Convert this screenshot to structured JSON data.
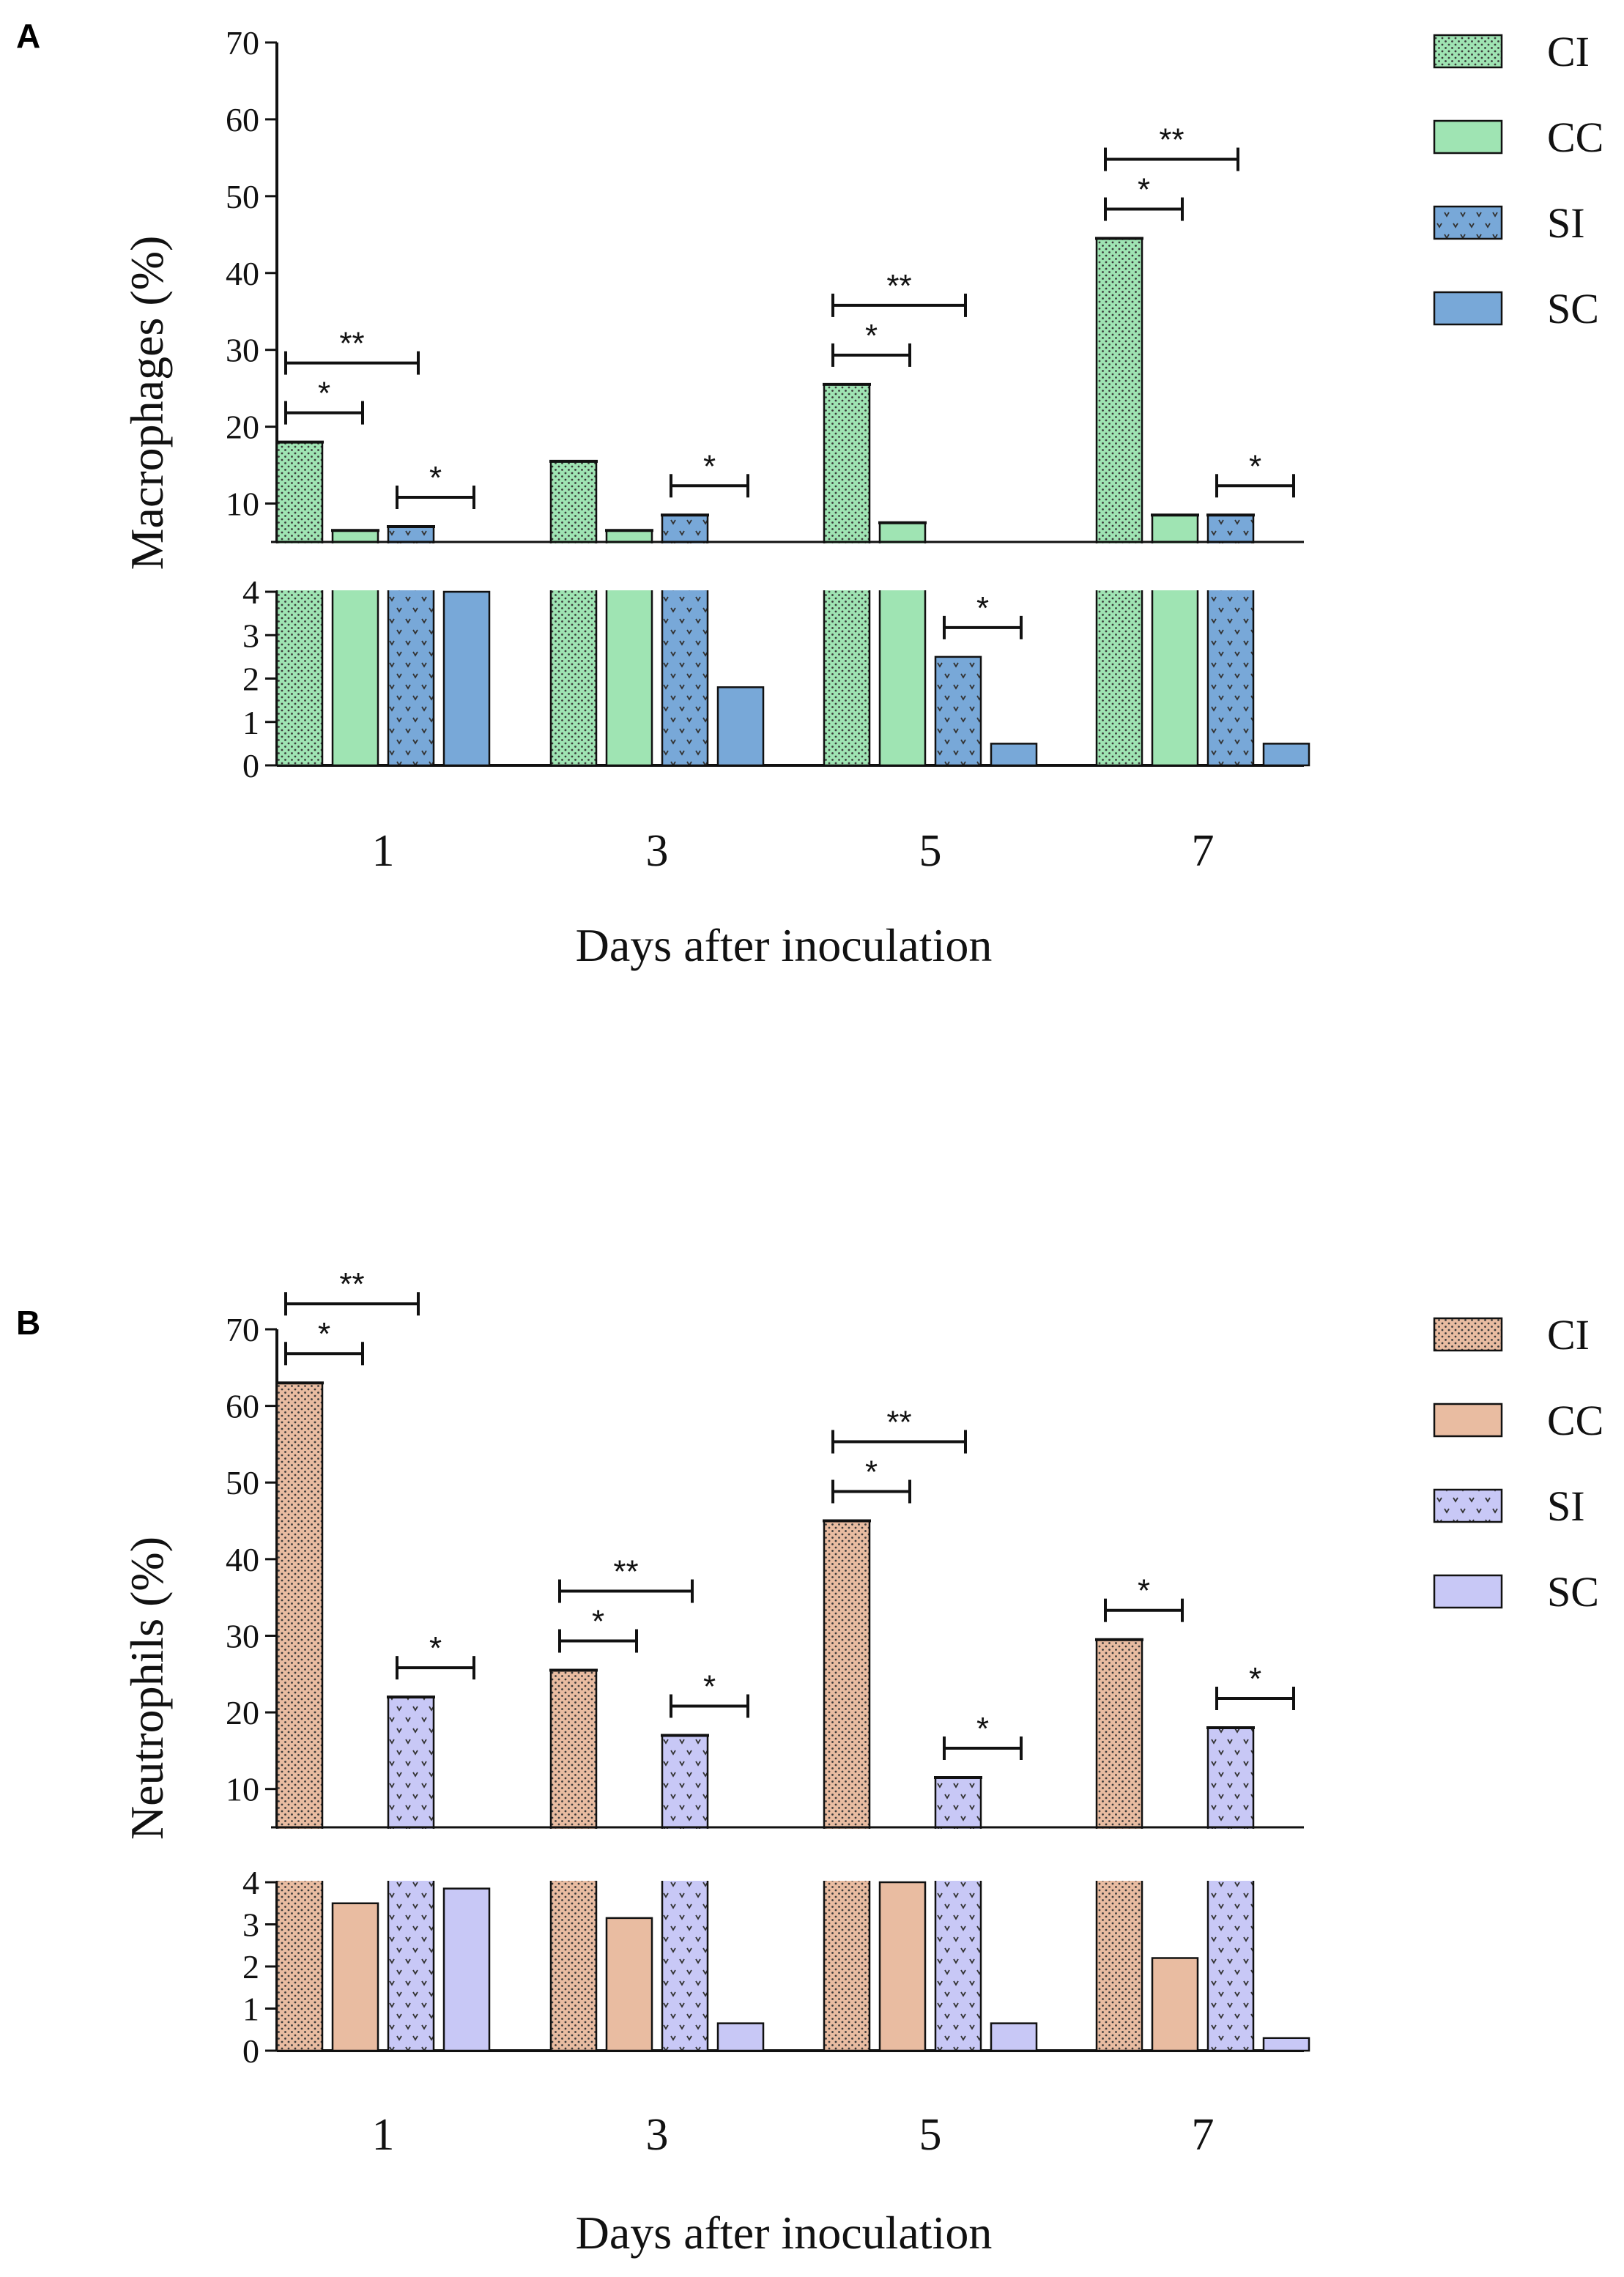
{
  "chart_data": [
    {
      "type": "bar",
      "panel_label": "A",
      "ylabel": "Macrophages (%)",
      "xlabel": "Days after inoculation",
      "categories": [
        "1",
        "3",
        "5",
        "7"
      ],
      "ylim_lower": [
        0,
        4
      ],
      "ylim_upper": [
        5,
        70
      ],
      "yticks_lower": [
        "0",
        "1",
        "2",
        "3",
        "4"
      ],
      "yticks_upper": [
        "10",
        "20",
        "30",
        "40",
        "50",
        "60",
        "70"
      ],
      "legend_position": "top-right",
      "series": [
        {
          "name": "CI",
          "values": [
            18,
            15.5,
            25.5,
            44.5
          ],
          "color": "#9fe4b3",
          "pattern": "dots"
        },
        {
          "name": "CC",
          "values": [
            6.5,
            6.5,
            7.5,
            8.5
          ],
          "color": "#9fe4b3",
          "pattern": "solid"
        },
        {
          "name": "SI",
          "values": [
            7,
            8.5,
            2.5,
            8.5
          ],
          "color": "#78a8d8",
          "pattern": "chevrons"
        },
        {
          "name": "SC",
          "values": [
            4,
            1.8,
            0.5,
            0.5
          ],
          "color": "#78a8d8",
          "pattern": "solid"
        }
      ],
      "annotations": [
        {
          "category": 0,
          "from": 0,
          "to": 1,
          "label": "*"
        },
        {
          "category": 0,
          "from": 0,
          "to": 2,
          "label": "**"
        },
        {
          "category": 0,
          "from": 2,
          "to": 3,
          "label": "*"
        },
        {
          "category": 1,
          "from": 2,
          "to": 3,
          "label": "*"
        },
        {
          "category": 2,
          "from": 0,
          "to": 1,
          "label": "*"
        },
        {
          "category": 2,
          "from": 0,
          "to": 2,
          "label": "**"
        },
        {
          "category": 2,
          "from": 2,
          "to": 3,
          "label": "*"
        },
        {
          "category": 3,
          "from": 0,
          "to": 1,
          "label": "*"
        },
        {
          "category": 3,
          "from": 0,
          "to": 2,
          "label": "**"
        },
        {
          "category": 3,
          "from": 2,
          "to": 3,
          "label": "*"
        }
      ]
    },
    {
      "type": "bar",
      "panel_label": "B",
      "ylabel": "Neutrophils (%)",
      "xlabel": "Days after inoculation",
      "categories": [
        "1",
        "3",
        "5",
        "7"
      ],
      "ylim_lower": [
        0,
        4
      ],
      "ylim_upper": [
        5,
        70
      ],
      "yticks_lower": [
        "0",
        "1",
        "2",
        "3",
        "4"
      ],
      "yticks_upper": [
        "10",
        "20",
        "30",
        "40",
        "50",
        "60",
        "70"
      ],
      "legend_position": "top-right",
      "series": [
        {
          "name": "CI",
          "values": [
            63,
            25.5,
            45,
            29.5
          ],
          "color": "#e9bca1",
          "pattern": "dots"
        },
        {
          "name": "CC",
          "values": [
            3.5,
            3.15,
            4,
            2.2
          ],
          "color": "#e9bca1",
          "pattern": "solid"
        },
        {
          "name": "SI",
          "values": [
            22,
            17,
            11.5,
            18
          ],
          "color": "#c8c8f6",
          "pattern": "chevrons"
        },
        {
          "name": "SC",
          "values": [
            3.85,
            0.65,
            0.65,
            0.3
          ],
          "color": "#c8c8f6",
          "pattern": "solid"
        }
      ],
      "annotations": [
        {
          "category": 0,
          "from": 0,
          "to": 1,
          "label": "*"
        },
        {
          "category": 0,
          "from": 0,
          "to": 2,
          "label": "**"
        },
        {
          "category": 0,
          "from": 2,
          "to": 3,
          "label": "*"
        },
        {
          "category": 1,
          "from": 0,
          "to": 1,
          "label": "*"
        },
        {
          "category": 1,
          "from": 0,
          "to": 2,
          "label": "**"
        },
        {
          "category": 1,
          "from": 2,
          "to": 3,
          "label": "*"
        },
        {
          "category": 2,
          "from": 0,
          "to": 1,
          "label": "*"
        },
        {
          "category": 2,
          "from": 0,
          "to": 2,
          "label": "**"
        },
        {
          "category": 2,
          "from": 2,
          "to": 3,
          "label": "*"
        },
        {
          "category": 3,
          "from": 0,
          "to": 1,
          "label": "*"
        },
        {
          "category": 3,
          "from": 2,
          "to": 3,
          "label": "*"
        }
      ]
    }
  ]
}
